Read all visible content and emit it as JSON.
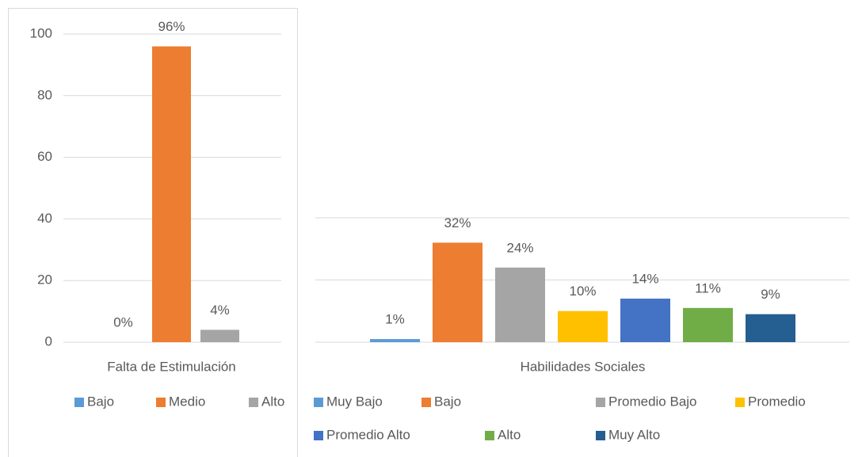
{
  "chart_data": [
    {
      "type": "bar",
      "categories": [
        "Falta de Estimulación"
      ],
      "series": [
        {
          "name": "Bajo",
          "color": "#5b9bd5",
          "values": [
            0
          ],
          "value_labels": [
            "0%"
          ]
        },
        {
          "name": "Medio",
          "color": "#ed7d31",
          "values": [
            96
          ],
          "value_labels": [
            "96%"
          ]
        },
        {
          "name": "Alto",
          "color": "#a5a5a5",
          "values": [
            4
          ],
          "value_labels": [
            "4%"
          ]
        }
      ],
      "ylim": [
        0,
        100
      ],
      "yticks": [
        0,
        20,
        40,
        60,
        80,
        100
      ],
      "grid": true,
      "tick_labels": true,
      "legend": "bottom"
    },
    {
      "type": "bar",
      "categories": [
        "Habilidades Sociales"
      ],
      "series": [
        {
          "name": "Muy Bajo",
          "color": "#5b9bd5",
          "values": [
            1
          ],
          "value_labels": [
            "1%"
          ]
        },
        {
          "name": "Bajo",
          "color": "#ed7d31",
          "values": [
            32
          ],
          "value_labels": [
            "32%"
          ]
        },
        {
          "name": "Promedio Bajo",
          "color": "#a5a5a5",
          "values": [
            24
          ],
          "value_labels": [
            "24%"
          ]
        },
        {
          "name": "Promedio",
          "color": "#ffc000",
          "values": [
            10
          ],
          "value_labels": [
            "10%"
          ]
        },
        {
          "name": "Promedio Alto",
          "color": "#4472c4",
          "values": [
            14
          ],
          "value_labels": [
            "14%"
          ]
        },
        {
          "name": "Alto",
          "color": "#70ad47",
          "values": [
            11
          ],
          "value_labels": [
            "11%"
          ]
        },
        {
          "name": "Muy Alto",
          "color": "#255e91",
          "values": [
            9
          ],
          "value_labels": [
            "9%"
          ]
        }
      ],
      "ylim": [
        0,
        40
      ],
      "yticks": [
        0,
        20,
        40
      ],
      "grid": true,
      "tick_labels": false,
      "legend": "bottom"
    }
  ]
}
